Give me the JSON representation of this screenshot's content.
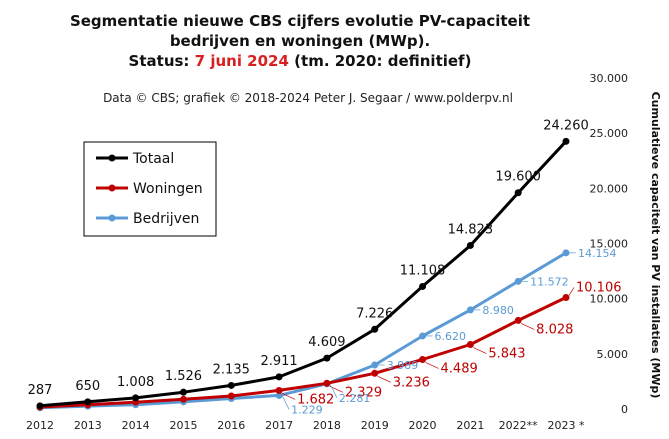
{
  "chart_data": {
    "type": "line",
    "title_line1": "Segmentatie nieuwe CBS cijfers evolutie PV-capaciteit",
    "title_line2": "bedrijven en woningen (MWp).",
    "status_prefix": "Status:",
    "status_date": "7 juni 2024",
    "status_suffix": "(tm. 2020: definitief)",
    "credit": "Data © CBS;  grafiek © 2018-2024  Peter J. Segaar / www.polderpv.nl",
    "ylabel": "Cumulatieve capaciteit van PV installaties (MWp)",
    "ylim": [
      0,
      30000
    ],
    "y_ticks": [
      0,
      5000,
      10000,
      15000,
      20000,
      25000,
      30000
    ],
    "y_tick_labels": [
      "0",
      "5.000",
      "10.000",
      "15.000",
      "20.000",
      "25.000",
      "30.000"
    ],
    "categories": [
      "2012",
      "2013",
      "2014",
      "2015",
      "2016",
      "2017",
      "2018",
      "2019",
      "2020",
      "2021",
      "2022**",
      "2023 *"
    ],
    "colors": {
      "totaal": "#000000",
      "woningen": "#c00000",
      "bedrijven": "#5b9bd5"
    },
    "series": [
      {
        "name": "Totaal",
        "key": "totaal",
        "values": [
          287,
          650,
          1008,
          1526,
          2135,
          2911,
          4609,
          7226,
          11108,
          14823,
          19600,
          24260
        ],
        "labels": [
          "287",
          "650",
          "1.008",
          "1.526",
          "2.135",
          "2.911",
          "4.609",
          "7.226",
          "11.108",
          "14.823",
          "19.600",
          "24.260"
        ]
      },
      {
        "name": "Woningen",
        "key": "woningen",
        "values": [
          180,
          390,
          620,
          880,
          1180,
          1682,
          2329,
          3236,
          4489,
          5843,
          8028,
          10106
        ],
        "labels": [
          "",
          "",
          "",
          "",
          "",
          "1.682",
          "2.329",
          "3.236",
          "4.489",
          "5.843",
          "8.028",
          "10.106"
        ]
      },
      {
        "name": "Bedrijven",
        "key": "bedrijven",
        "values": [
          110,
          260,
          390,
          650,
          955,
          1229,
          2281,
          3989,
          6620,
          8980,
          11572,
          14154
        ],
        "labels": [
          "",
          "",
          "",
          "",
          "",
          "1.229",
          "2.281",
          "3.989",
          "6.620",
          "8.980",
          "11.572",
          "14.154"
        ]
      }
    ],
    "legend": {
      "position": "top-left",
      "items": [
        "Totaal",
        "Woningen",
        "Bedrijven"
      ]
    }
  }
}
